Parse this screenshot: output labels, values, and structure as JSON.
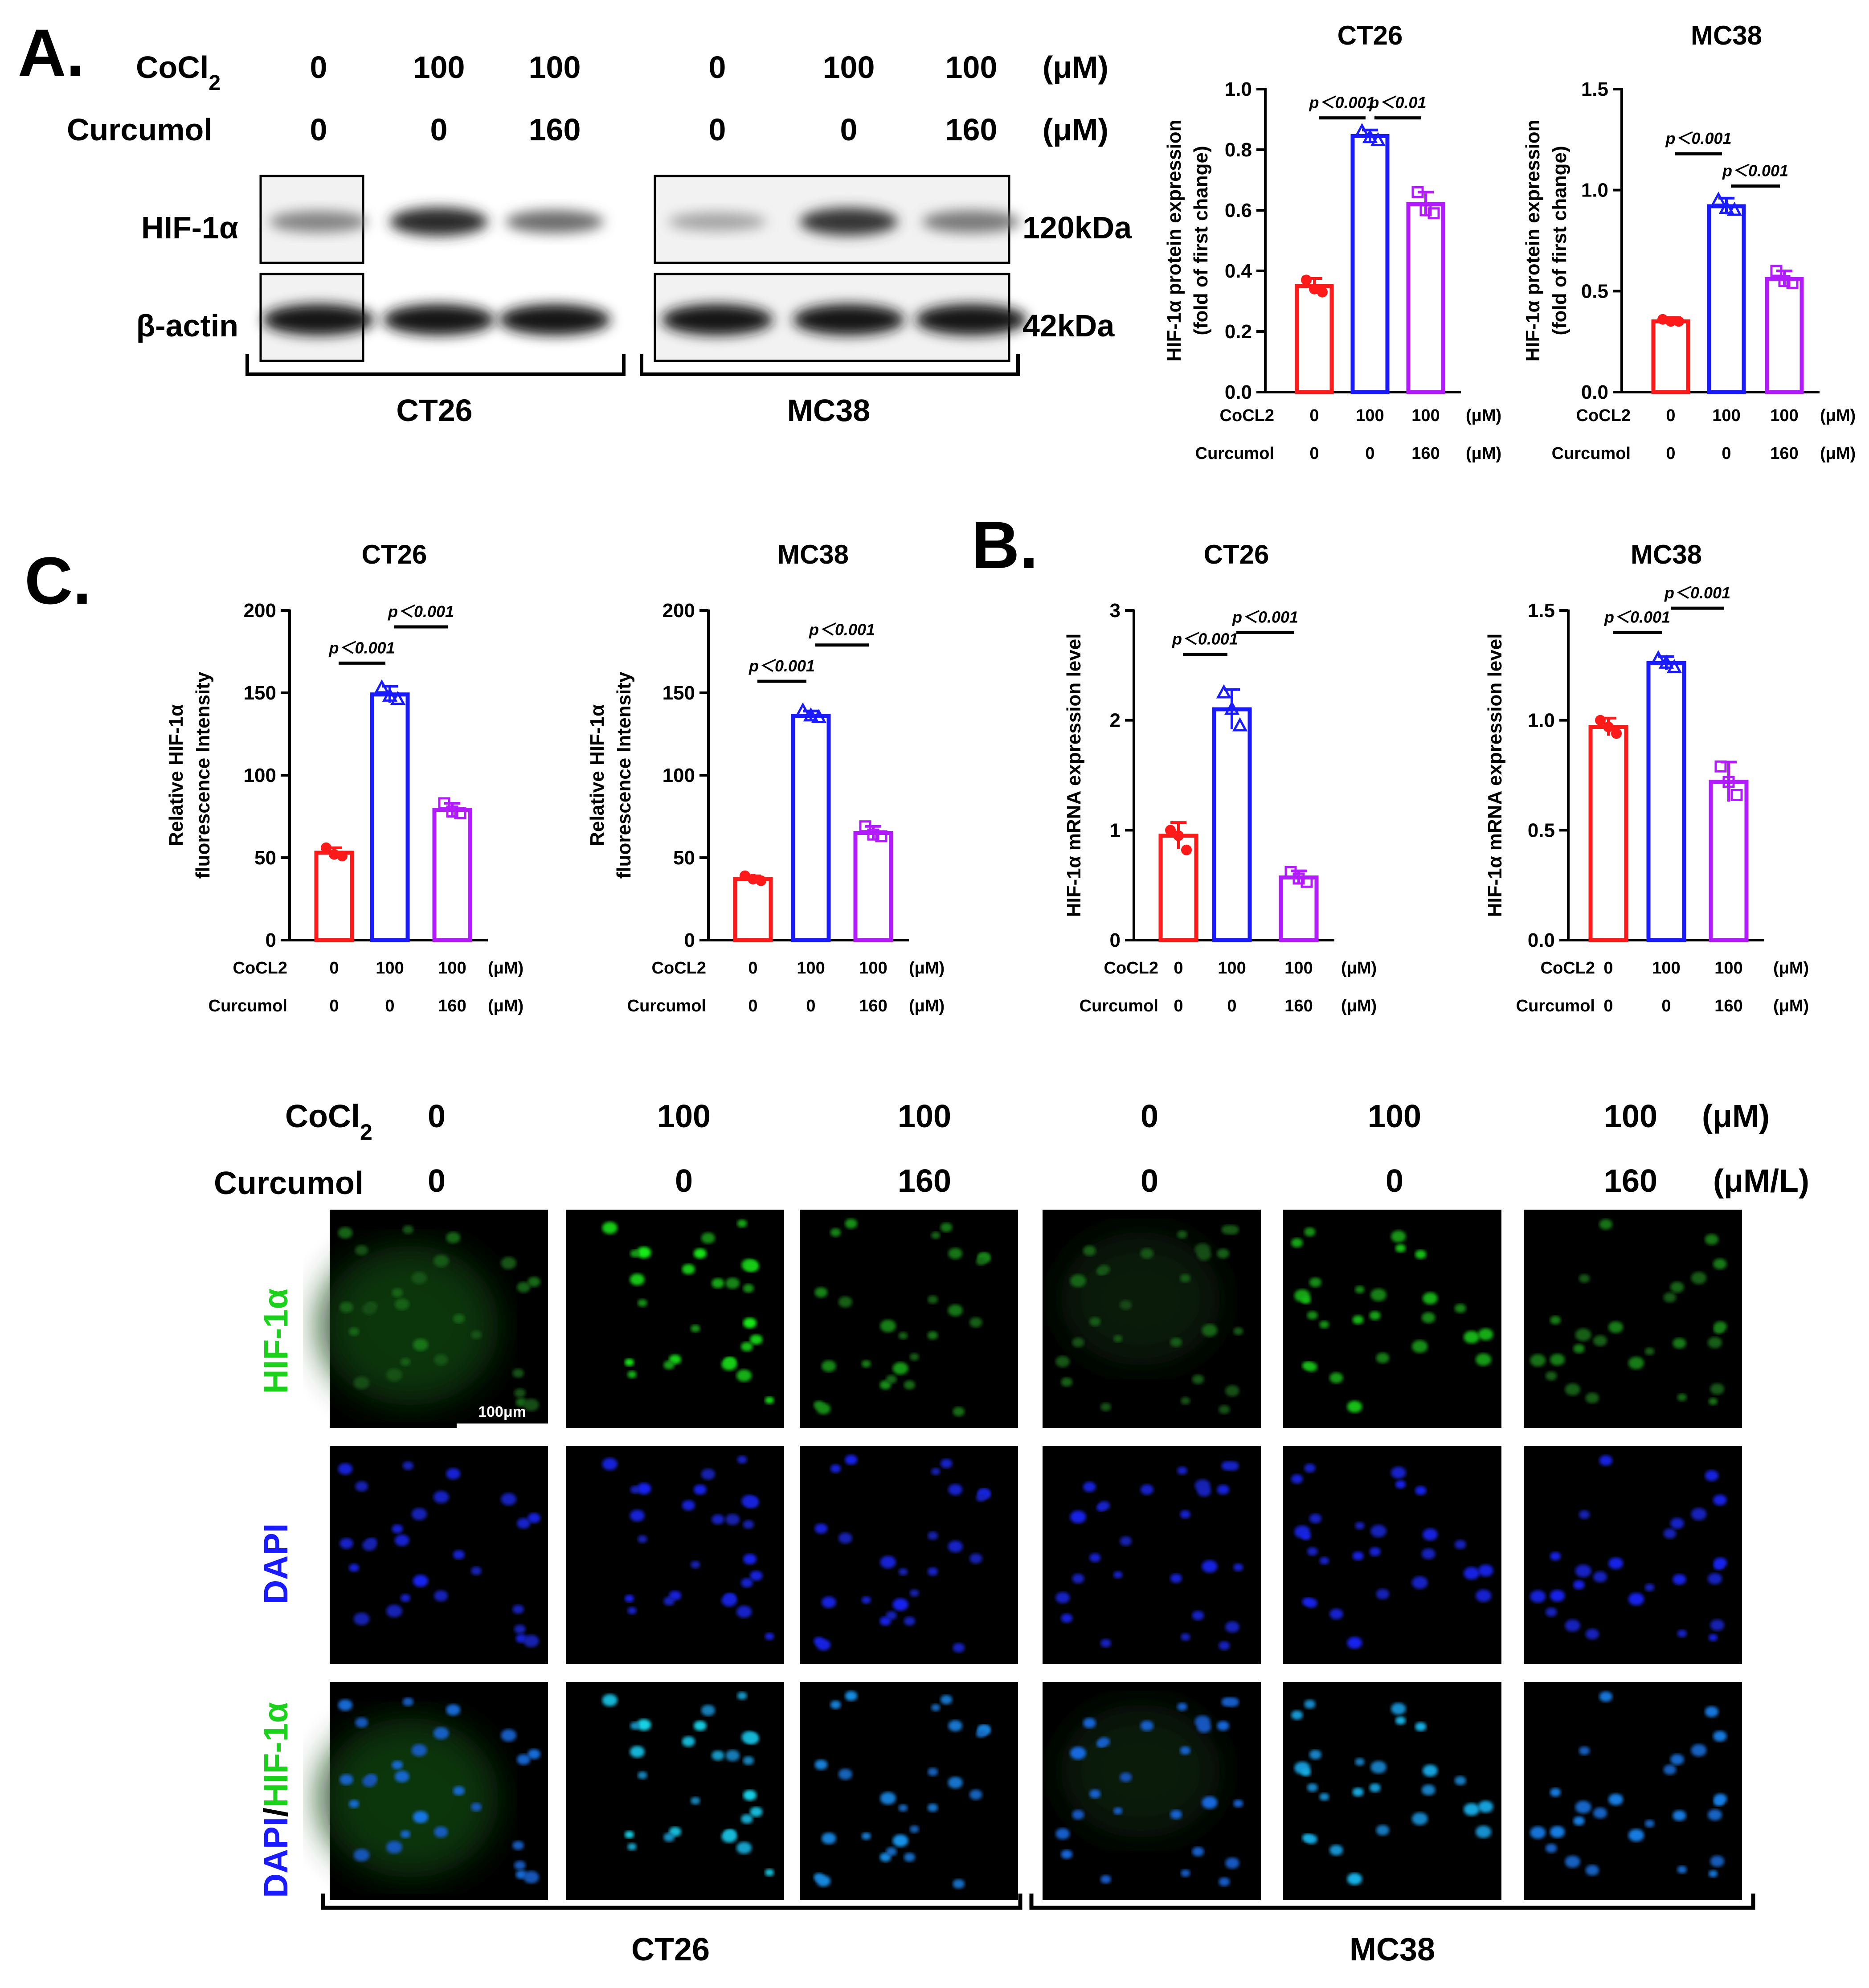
{
  "panels": {
    "A": "A.",
    "B": "B.",
    "C": "C."
  },
  "colors": {
    "ctrl": "#ff1a1a",
    "cocl2": "#1a1aff",
    "curcumol": "#b21aff",
    "hif_stain": "#1bd11b",
    "dapi_stain": "#1a1aff"
  },
  "units": {
    "uM": "(μM)",
    "uML": "(μM/L)"
  },
  "western_blot": {
    "cocl2_label": "CoCl",
    "cocl2_sub": "2",
    "curcumol_label": "Curcumol",
    "cocl2_values": [
      "0",
      "100",
      "100",
      "0",
      "100",
      "100"
    ],
    "curcumol_values": [
      "0",
      "0",
      "160",
      "0",
      "0",
      "160"
    ],
    "rows": [
      {
        "label": "HIF-1α",
        "kda": "120kDa",
        "intensity": [
          0.45,
          0.85,
          0.55,
          0.3,
          0.8,
          0.5
        ]
      },
      {
        "label": "β-actin",
        "kda": "42kDa",
        "intensity": [
          0.95,
          0.95,
          0.95,
          0.95,
          0.95,
          0.95
        ]
      }
    ],
    "groups": [
      "CT26",
      "MC38"
    ]
  },
  "chart_data": [
    {
      "type": "bar",
      "panel": "A",
      "title": "CT26",
      "ylabel": "HIF-1α protein expression",
      "ylabel2": "(fold of first change)",
      "ylim": [
        0,
        1.0
      ],
      "yticks": [
        "0.0",
        "0.2",
        "0.4",
        "0.6",
        "0.8",
        "1.0"
      ],
      "ytick_values": [
        0,
        0.2,
        0.4,
        0.6,
        0.8,
        1.0
      ],
      "cocl2_label": "CoCL2",
      "curcumol_label": "Curcumol",
      "cocl2": [
        "0",
        "100",
        "100"
      ],
      "curcumol": [
        "0",
        "0",
        "160"
      ],
      "unit": "(μM)",
      "values": [
        0.35,
        0.845,
        0.62
      ],
      "errors": [
        0.025,
        0.02,
        0.04
      ],
      "points": [
        [
          0.37,
          0.34,
          0.33
        ],
        [
          0.86,
          0.84,
          0.83
        ],
        [
          0.66,
          0.6,
          0.59
        ]
      ],
      "markers": [
        "circle",
        "triangle",
        "square"
      ],
      "pvalues": [
        {
          "text": "p＜0.001",
          "from": 0,
          "to": 1,
          "y": 0.905
        },
        {
          "text": "p＜0.01",
          "from": 1,
          "to": 2,
          "y": 0.905
        }
      ]
    },
    {
      "type": "bar",
      "panel": "A",
      "title": "MC38",
      "ylabel": "HIF-1α protein expression",
      "ylabel2": "(fold of first change)",
      "ylim": [
        0,
        1.5
      ],
      "yticks": [
        "0.0",
        "0.5",
        "1.0",
        "1.5"
      ],
      "ytick_values": [
        0,
        0.5,
        1.0,
        1.5
      ],
      "cocl2_label": "CoCL2",
      "curcumol_label": "Curcumol",
      "cocl2": [
        "0",
        "100",
        "100"
      ],
      "curcumol": [
        "0",
        "0",
        "160"
      ],
      "unit": "(μM)",
      "values": [
        0.35,
        0.92,
        0.56
      ],
      "errors": [
        0.02,
        0.04,
        0.04
      ],
      "points": [
        [
          0.36,
          0.35,
          0.35
        ],
        [
          0.95,
          0.91,
          0.9
        ],
        [
          0.6,
          0.55,
          0.54
        ]
      ],
      "markers": [
        "circle",
        "triangle",
        "square"
      ],
      "pvalues": [
        {
          "text": "p＜0.001",
          "from": 0,
          "to": 1,
          "y": 1.18
        },
        {
          "text": "p＜0.001",
          "from": 1,
          "to": 2,
          "y": 1.02
        }
      ]
    },
    {
      "type": "bar",
      "panel": "C",
      "title": "CT26",
      "ylabel": "Relative HIF-1α",
      "ylabel2": "fluorescence Intensity",
      "ylim": [
        0,
        200
      ],
      "yticks": [
        "0",
        "50",
        "100",
        "150",
        "200"
      ],
      "ytick_values": [
        0,
        50,
        100,
        150,
        200
      ],
      "cocl2_label": "CoCL2",
      "curcumol_label": "Curcumol",
      "cocl2": [
        "0",
        "100",
        "100"
      ],
      "curcumol": [
        "0",
        "0",
        "160"
      ],
      "unit": "(μM)",
      "values": [
        53,
        149,
        79
      ],
      "errors": [
        3,
        5,
        4
      ],
      "points": [
        [
          56,
          52,
          51
        ],
        [
          153,
          148,
          146
        ],
        [
          83,
          78,
          77
        ]
      ],
      "markers": [
        "circle",
        "triangle",
        "square"
      ],
      "pvalues": [
        {
          "text": "p＜0.001",
          "from": 0,
          "to": 1,
          "y": 168
        },
        {
          "text": "p＜0.001",
          "from": 1,
          "to": 2,
          "y": 190
        }
      ]
    },
    {
      "type": "bar",
      "panel": "C",
      "title": "MC38",
      "ylabel": "Relative HIF-1α",
      "ylabel2": "fluorescence Intensity",
      "ylim": [
        0,
        200
      ],
      "yticks": [
        "0",
        "50",
        "100",
        "150",
        "200"
      ],
      "ytick_values": [
        0,
        50,
        100,
        150,
        200
      ],
      "cocl2_label": "CoCL2",
      "curcumol_label": "Curcumol",
      "cocl2": [
        "0",
        "100",
        "100"
      ],
      "curcumol": [
        "0",
        "0",
        "160"
      ],
      "unit": "(μM)",
      "values": [
        37,
        136,
        65
      ],
      "errors": [
        2,
        3,
        4
      ],
      "points": [
        [
          39,
          37,
          36
        ],
        [
          139,
          136,
          135
        ],
        [
          69,
          64,
          63
        ]
      ],
      "markers": [
        "circle",
        "triangle",
        "square"
      ],
      "pvalues": [
        {
          "text": "p＜0.001",
          "from": 0,
          "to": 1,
          "y": 157
        },
        {
          "text": "p＜0.001",
          "from": 1,
          "to": 2,
          "y": 179
        }
      ]
    },
    {
      "type": "bar",
      "panel": "B",
      "title": "CT26",
      "ylabel": "HIF-1α mRNA expression level",
      "ylabel2": "",
      "ylim": [
        0,
        3
      ],
      "yticks": [
        "0",
        "1",
        "2",
        "3"
      ],
      "ytick_values": [
        0,
        1,
        2,
        3
      ],
      "cocl2_label": "CoCL2",
      "curcumol_label": "Curcumol",
      "cocl2": [
        "0",
        "100",
        "100"
      ],
      "curcumol": [
        "0",
        "0",
        "160"
      ],
      "unit": "(μM)",
      "values": [
        0.95,
        2.1,
        0.57
      ],
      "errors": [
        0.12,
        0.18,
        0.06
      ],
      "points": [
        [
          1.0,
          0.95,
          0.82
        ],
        [
          2.25,
          2.1,
          1.95
        ],
        [
          0.62,
          0.56,
          0.53
        ]
      ],
      "markers": [
        "circle",
        "triangle",
        "square"
      ],
      "pvalues": [
        {
          "text": "p＜0.001",
          "from": 0,
          "to": 1,
          "y": 2.6
        },
        {
          "text": "p＜0.001",
          "from": 1,
          "to": 2,
          "y": 2.8
        }
      ]
    },
    {
      "type": "bar",
      "panel": "B",
      "title": "MC38",
      "ylabel": "HIF-1α mRNA expression level",
      "ylabel2": "",
      "ylim": [
        0,
        1.5
      ],
      "yticks": [
        "0.0",
        "0.5",
        "1.0",
        "1.5"
      ],
      "ytick_values": [
        0,
        0.5,
        1.0,
        1.5
      ],
      "cocl2_label": "CoCL2",
      "curcumol_label": "Curcumol",
      "cocl2": [
        "0",
        "100",
        "100"
      ],
      "curcumol": [
        "0",
        "0",
        "160"
      ],
      "unit": "(μM)",
      "values": [
        0.97,
        1.26,
        0.72
      ],
      "errors": [
        0.04,
        0.03,
        0.09
      ],
      "points": [
        [
          1.0,
          0.97,
          0.94
        ],
        [
          1.28,
          1.26,
          1.24
        ],
        [
          0.79,
          0.72,
          0.66
        ]
      ],
      "markers": [
        "circle",
        "triangle",
        "square"
      ],
      "pvalues": [
        {
          "text": "p＜0.001",
          "from": 0,
          "to": 1,
          "y": 1.4
        },
        {
          "text": "p＜0.001",
          "from": 1,
          "to": 2,
          "y": 1.51
        }
      ]
    }
  ],
  "immunofluorescence": {
    "cocl2_label": "CoCl",
    "cocl2_sub": "2",
    "curcumol_label": "Curcumol",
    "cocl2_values": [
      "0",
      "100",
      "100",
      "0",
      "100",
      "100"
    ],
    "curcumol_values": [
      "0",
      "0",
      "160",
      "0",
      "0",
      "160"
    ],
    "row_labels": {
      "hif": "HIF-1α",
      "dapi": "DAPI",
      "merge_dapi": "DAPI",
      "merge_slash": "/",
      "merge_hif": "HIF-1α"
    },
    "hif_levels": [
      0.35,
      0.9,
      0.5,
      0.3,
      0.7,
      0.4
    ],
    "scale_bar": "100μm",
    "groups": [
      "CT26",
      "MC38"
    ]
  }
}
